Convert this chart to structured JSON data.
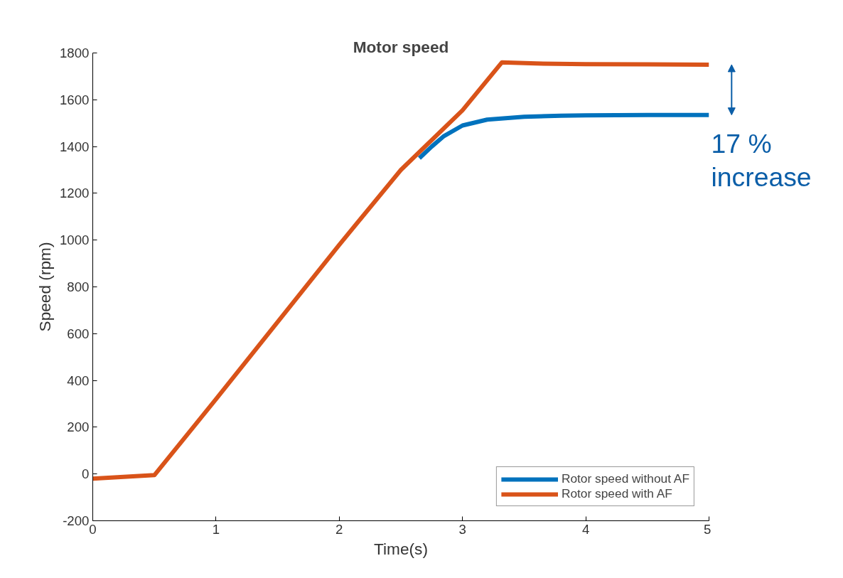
{
  "chart_data": {
    "type": "line",
    "title": "Motor speed",
    "xlabel": "Time(s)",
    "ylabel": "Speed (rpm)",
    "xlim": [
      0,
      5
    ],
    "xticks": [
      0,
      1,
      2,
      3,
      4,
      5
    ],
    "ylim": [
      -200,
      1800
    ],
    "yticks": [
      -200,
      0,
      200,
      400,
      600,
      800,
      1000,
      1200,
      1400,
      1600,
      1800
    ],
    "grid": false,
    "legend": "bottom right",
    "marker": "none",
    "line_style": "solid",
    "series": [
      {
        "name": "Rotor speed without AF",
        "color": "#0072bd",
        "x": [
          2.65,
          2.75,
          2.85,
          3,
          3.2,
          3.5,
          3.8,
          4,
          4.5,
          5
        ],
        "values": [
          1350,
          1400,
          1445,
          1490,
          1515,
          1527,
          1532,
          1533,
          1535,
          1535
        ]
      },
      {
        "name": "Rotor speed with AF",
        "color": "#d95319",
        "x": [
          0,
          0.5,
          1,
          1.5,
          2,
          2.5,
          3,
          3.32,
          3.6,
          4,
          4.5,
          5
        ],
        "values": [
          -20,
          -5,
          320,
          650,
          980,
          1300,
          1555,
          1760,
          1755,
          1752,
          1751,
          1750
        ]
      }
    ],
    "annotations": [
      "17 %\nincrease"
    ]
  }
}
